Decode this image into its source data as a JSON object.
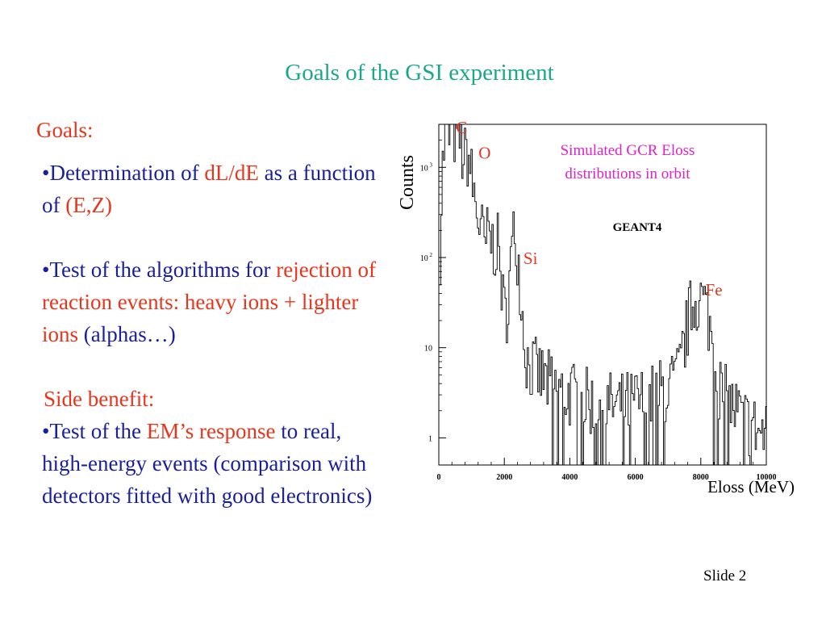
{
  "slide": {
    "title": "Goals of the GSI experiment",
    "goals_heading": "Goals:",
    "bullet1": {
      "prefix": "•Determination of ",
      "highlight1": "dL/dE",
      "mid": " as a function of ",
      "highlight2": "(E,Z)"
    },
    "bullet2": {
      "prefix": "•Test of the algorithms for ",
      "highlight": "rejection  of reaction events: heavy ions + lighter ions",
      "suffix": " (alphas…)"
    },
    "side_heading": "Side benefit:",
    "bullet3": {
      "prefix": "•Test of the ",
      "highlight": "EM’s response",
      "suffix": " to real, high-energy events (comparison with detectors fitted with good electronics)"
    },
    "slide_number": "Slide 2"
  },
  "colors": {
    "title": "#1aa88a",
    "body_text": "#1a1f9c",
    "highlight": "#e8361c",
    "chart_caption": "#e020c8"
  },
  "chart_data": {
    "type": "line",
    "title": "",
    "xlabel": "Eloss (MeV)",
    "ylabel": "Counts",
    "xlim": [
      0,
      10000
    ],
    "ylim": [
      0.5,
      3000
    ],
    "log_y": true,
    "x_ticks": [
      0,
      2000,
      4000,
      6000,
      8000,
      10000
    ],
    "x_tick_labels": [
      "0",
      "2000",
      "4000",
      "6000",
      "8000",
      "10000"
    ],
    "y_ticks": [
      1,
      10,
      100,
      1000
    ],
    "y_tick_labels": [
      {
        "base": "1",
        "exp": ""
      },
      {
        "base": "10",
        "exp": ""
      },
      {
        "base": "10",
        "exp": "2"
      },
      {
        "base": "10",
        "exp": "3"
      }
    ],
    "caption": [
      "Simulated GCR Eloss",
      "distributions in orbit"
    ],
    "generator_label": "GEANT4",
    "peak_labels": [
      {
        "text": "C",
        "x": 700,
        "y": 2400
      },
      {
        "text": "O",
        "x": 1400,
        "y": 1250
      },
      {
        "text": "Si",
        "x": 2800,
        "y": 85
      },
      {
        "text": "Fe",
        "x": 8400,
        "y": 38
      }
    ],
    "series": [
      {
        "peaks": [
          {
            "x": 150,
            "y": 1200,
            "w": 60
          },
          {
            "x": 250,
            "y": 1500,
            "w": 70
          },
          {
            "x": 400,
            "y": 2200,
            "w": 80
          },
          {
            "x": 600,
            "y": 2000,
            "w": 90
          },
          {
            "x": 850,
            "y": 1300,
            "w": 90
          },
          {
            "x": 1050,
            "y": 400,
            "w": 90
          },
          {
            "x": 1250,
            "y": 180,
            "w": 80
          },
          {
            "x": 1500,
            "y": 160,
            "w": 100
          },
          {
            "x": 1750,
            "y": 120,
            "w": 100
          },
          {
            "x": 2300,
            "y": 110,
            "w": 120
          },
          {
            "x": 2300,
            "y": 60,
            "w": 60
          },
          {
            "x": 7800,
            "y": 25,
            "w": 200
          },
          {
            "x": 8100,
            "y": 18,
            "w": 180
          }
        ],
        "baseline": [
          {
            "x": 0,
            "y": 0.6
          },
          {
            "x": 1000,
            "y": 4
          },
          {
            "x": 2000,
            "y": 12
          },
          {
            "x": 2800,
            "y": 6
          },
          {
            "x": 3500,
            "y": 3.5
          },
          {
            "x": 4500,
            "y": 2.5
          },
          {
            "x": 5500,
            "y": 2.2
          },
          {
            "x": 6500,
            "y": 2.8
          },
          {
            "x": 7200,
            "y": 4
          },
          {
            "x": 8600,
            "y": 3
          },
          {
            "x": 9400,
            "y": 1.5
          },
          {
            "x": 10000,
            "y": 1
          }
        ],
        "noise_amplitude": 0.9,
        "bin_width": 40
      }
    ]
  }
}
